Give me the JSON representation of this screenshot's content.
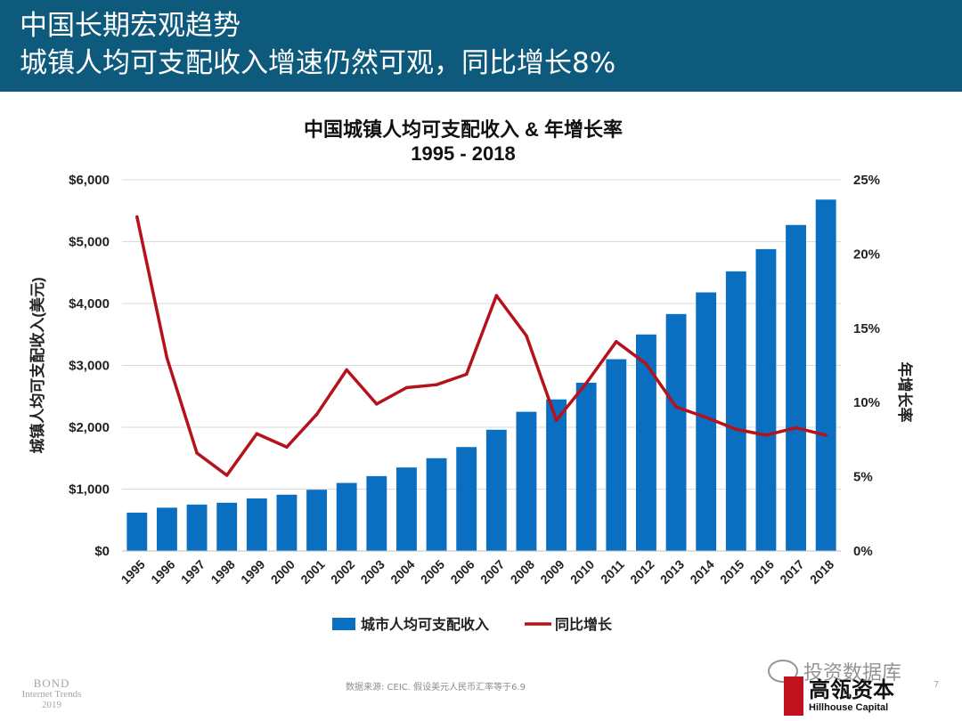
{
  "header": {
    "line1": "中国长期宏观趋势",
    "line2": "城镇人均可支配收入增速仍然可观，同比增长8%",
    "background": "#0e5a7c"
  },
  "chart_data": {
    "type": "bar",
    "title": "中国城镇人均可支配收入 & 年增长率",
    "subtitle": "1995 - 2018",
    "categories": [
      "1995",
      "1996",
      "1997",
      "1998",
      "1999",
      "2000",
      "2001",
      "2002",
      "2003",
      "2004",
      "2005",
      "2006",
      "2007",
      "2008",
      "2009",
      "2010",
      "2011",
      "2012",
      "2013",
      "2014",
      "2015",
      "2016",
      "2017",
      "2018"
    ],
    "series": [
      {
        "name": "城市人均可支配收入",
        "type": "bar",
        "axis": "left",
        "color": "#0a6fc0",
        "values": [
          620,
          700,
          750,
          780,
          850,
          910,
          990,
          1100,
          1210,
          1350,
          1500,
          1680,
          1960,
          2250,
          2450,
          2720,
          3100,
          3500,
          3830,
          4180,
          4520,
          4880,
          5270,
          5680
        ]
      },
      {
        "name": "同比增长",
        "type": "line",
        "axis": "right",
        "color": "#b5121b",
        "values": [
          22.5,
          13.0,
          6.6,
          5.1,
          7.9,
          7.0,
          9.2,
          12.2,
          9.9,
          11.0,
          11.2,
          11.9,
          17.2,
          14.5,
          8.8,
          11.3,
          14.1,
          12.6,
          9.7,
          9.0,
          8.2,
          7.8,
          8.3,
          7.8
        ]
      }
    ],
    "ylabel": "城镇人均可支配收入(美元)",
    "y2label": "年增长率",
    "ylim": [
      0,
      6000
    ],
    "y2lim": [
      0,
      25
    ],
    "yticks": [
      "$0",
      "$1,000",
      "$2,000",
      "$3,000",
      "$4,000",
      "$5,000",
      "$6,000"
    ],
    "y2ticks": [
      "0%",
      "5%",
      "10%",
      "15%",
      "20%",
      "25%"
    ],
    "grid": true,
    "legend_position": "bottom"
  },
  "footer": {
    "logo_line1": "BOND",
    "logo_line2": "Internet Trends",
    "logo_line3": "2019",
    "source": "数据来源: CEIC. 假设美元人民币汇率等于6.9",
    "page_number": "7",
    "watermark": "投资数据库",
    "brand_cn": "高瓴资本",
    "brand_en": "Hillhouse Capital",
    "brand_color": "#c0111f"
  }
}
